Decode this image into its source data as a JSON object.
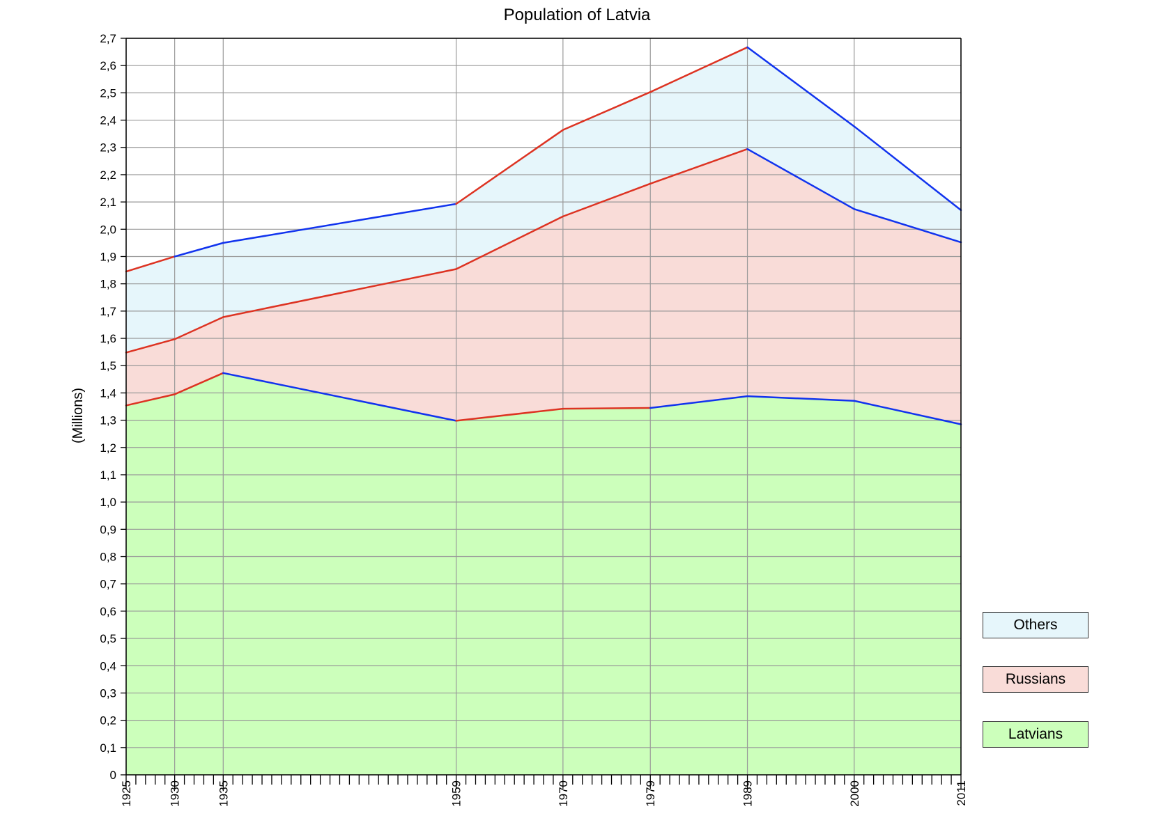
{
  "chart_data": {
    "type": "area",
    "title": "Population of Latvia",
    "xlabel": "",
    "ylabel": "(Millions)",
    "x": [
      1925,
      1930,
      1935,
      1959,
      1970,
      1979,
      1989,
      2000,
      2011
    ],
    "xlim": [
      1925,
      2011
    ],
    "ylim": [
      0,
      2.7
    ],
    "y_ticks": [
      "0",
      "0,1",
      "0,2",
      "0,3",
      "0,4",
      "0,5",
      "0,6",
      "0,7",
      "0,8",
      "0,9",
      "1,0",
      "1,1",
      "1,2",
      "1,3",
      "1,4",
      "1,5",
      "1,6",
      "1,7",
      "1,8",
      "1,9",
      "2,0",
      "2,1",
      "2,2",
      "2,3",
      "2,4",
      "2,5",
      "2,6",
      "2,7"
    ],
    "x_tick_labels": [
      "1925",
      "1930",
      "1935",
      "1959",
      "1970",
      "1979",
      "1989",
      "2000",
      "2011"
    ],
    "grid": true,
    "stacked": true,
    "series": [
      {
        "name": "Latvians",
        "fill": "#ccffbb",
        "cumulative": [
          1.354,
          1.395,
          1.473,
          1.298,
          1.342,
          1.345,
          1.388,
          1.371,
          1.285
        ]
      },
      {
        "name": "Russians",
        "fill": "#f9dcd8",
        "cumulative": [
          1.548,
          1.597,
          1.678,
          1.854,
          2.047,
          2.167,
          2.294,
          2.074,
          1.952
        ]
      },
      {
        "name": "Others",
        "fill": "#e6f6fb",
        "cumulative": [
          1.845,
          1.9,
          1.95,
          2.093,
          2.364,
          2.503,
          2.667,
          2.377,
          2.07
        ]
      }
    ],
    "line_colors": {
      "red": "#dd3322",
      "blue": "#1133ee"
    },
    "legend_placement": "bottom-right"
  }
}
